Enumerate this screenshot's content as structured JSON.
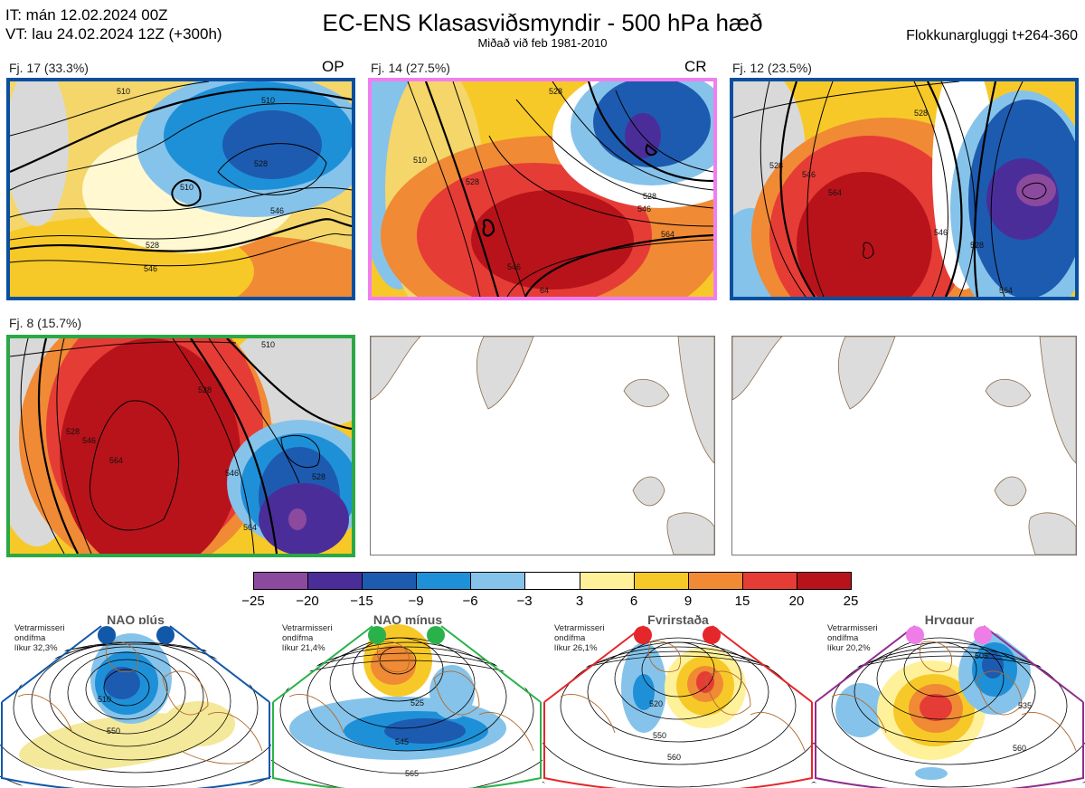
{
  "header": {
    "issue_time": "IT: mán 12.02.2024 00Z",
    "valid_time": "VT: lau 24.02.2024 12Z  (+300h)",
    "title": "EC-ENS Klasasviðsmyndir - 500 hPa hæð",
    "subtitle": "Miðað við feb 1981-2010",
    "window": "Flokkunargluggi t+264-360"
  },
  "clusters": [
    {
      "label": "Fj. 17 (33.3%)",
      "tag": "OP",
      "border": "#0a4f9e",
      "contours": [
        "510",
        "528",
        "546",
        "510",
        "528",
        "546",
        "54"
      ]
    },
    {
      "label": "Fj. 14 (27.5%)",
      "tag": "CR",
      "border": "#f07ef0",
      "contours": [
        "528",
        "510",
        "528",
        "546",
        "564",
        "546",
        "64"
      ]
    },
    {
      "label": "Fj. 12 (23.5%)",
      "tag": "",
      "border": "#0a4f9e",
      "contours": [
        "528",
        "546",
        "564",
        "546",
        "528",
        "564"
      ]
    },
    {
      "label": "Fj. 8 (15.7%)",
      "tag": "",
      "border": "#2aa845",
      "contours": [
        "510",
        "528",
        "546",
        "564",
        "546",
        "528",
        "564"
      ]
    }
  ],
  "colorbar": {
    "ticks": [
      "−25",
      "−20",
      "−15",
      "−9",
      "−6",
      "−3",
      "3",
      "6",
      "9",
      "15",
      "20",
      "25"
    ],
    "colors": [
      "#8b4a9e",
      "#4b2d9a",
      "#1d5bb0",
      "#1e90d8",
      "#86c3ea",
      "#ffffff",
      "#fff19a",
      "#f7c928",
      "#f08a35",
      "#e63c36",
      "#b8131a"
    ]
  },
  "regimes": [
    {
      "name": "NAO plús",
      "note": [
        "Vetrarmisseri",
        "ondífma",
        "líkur 32,3%"
      ],
      "dot_color": "#1158a8",
      "frame": "#1158a8",
      "contours": [
        "510",
        "550"
      ]
    },
    {
      "name": "NAO mínus",
      "note": [
        "Vetrarmisseri",
        "ondífma",
        "líkur 21,4%"
      ],
      "dot_color": "#2ab24a",
      "frame": "#2ab24a",
      "contours": [
        "525",
        "545",
        "565"
      ]
    },
    {
      "name": "Fyrirstaða",
      "note": [
        "Vetrarmisseri",
        "ondífma",
        "líkur 26,1%"
      ],
      "dot_color": "#e5262b",
      "frame": "#e5262b",
      "contours": [
        "520",
        "550",
        "560"
      ]
    },
    {
      "name": "Hryggur",
      "note": [
        "Vetrarmisseri",
        "ondífma",
        "líkur 20,2%"
      ],
      "dot_color": "#ee7de8",
      "frame": "#8e2d8e",
      "contours": [
        "505",
        "535",
        "560"
      ]
    }
  ]
}
